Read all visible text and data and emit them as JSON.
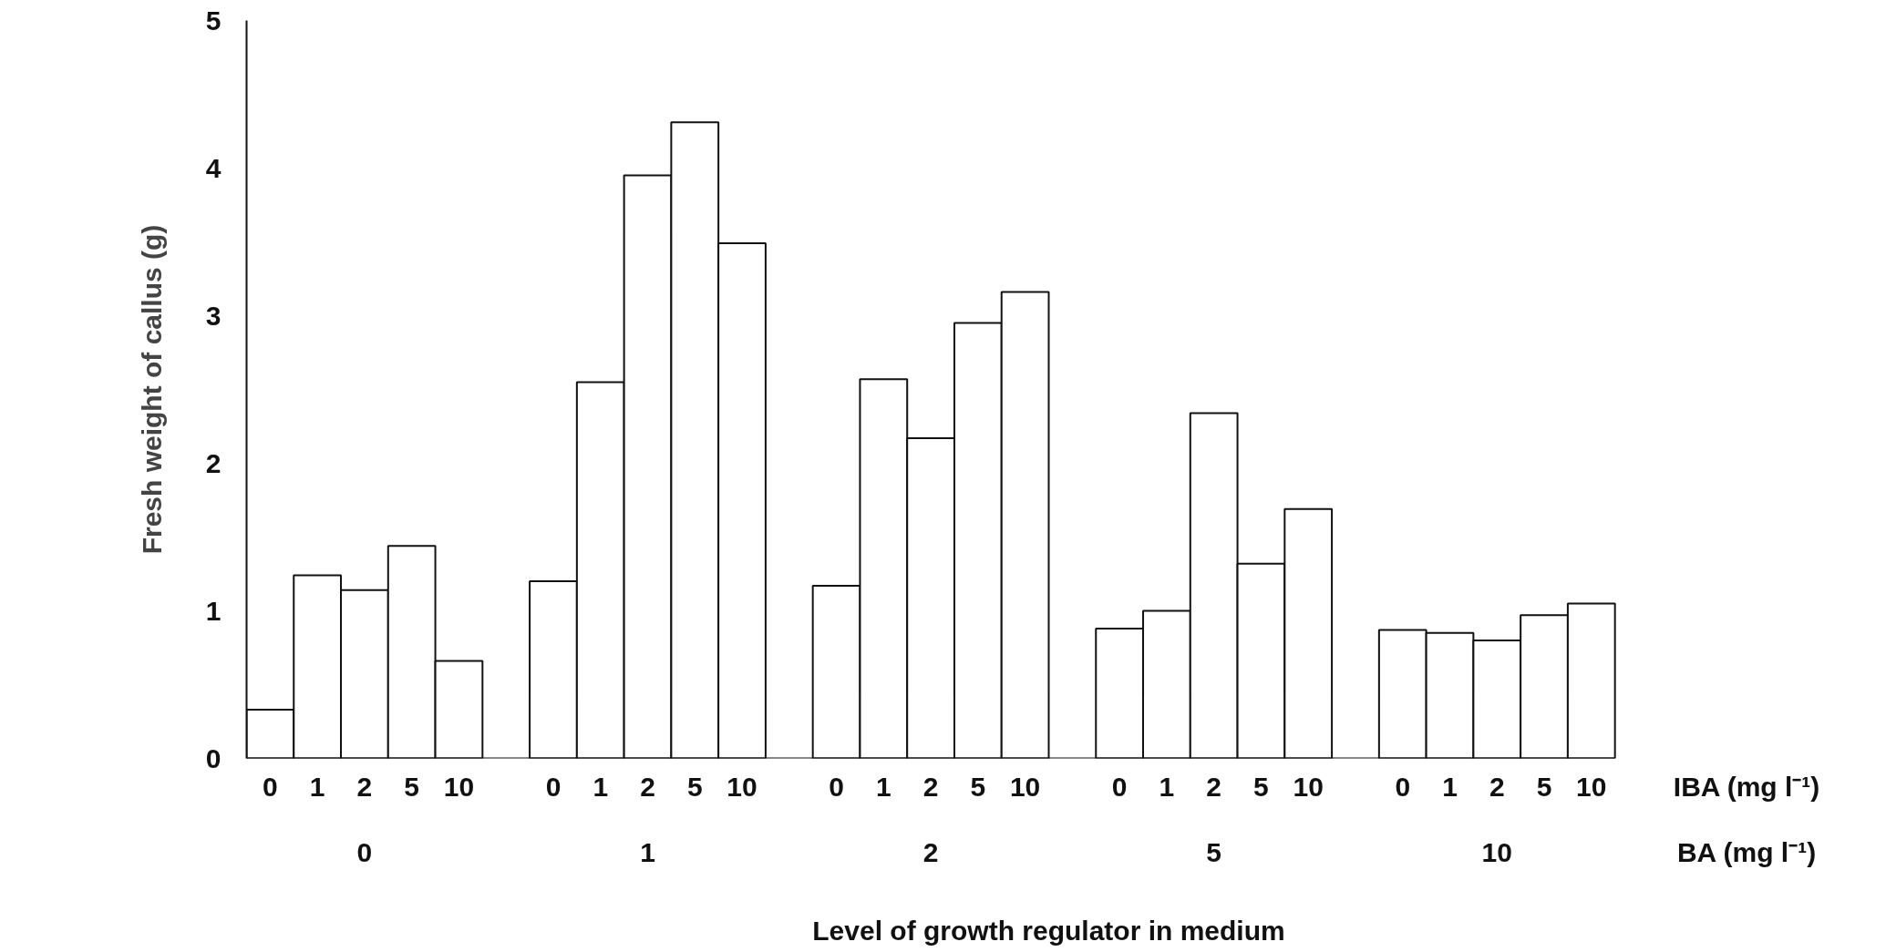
{
  "chart_data": {
    "type": "bar",
    "xlabel": "Level of growth regulator in medium",
    "ylabel": "Fresh weight of callus (g)",
    "categories": [
      "0",
      "1",
      "2",
      "5",
      "10",
      null,
      "0",
      "1",
      "2",
      "5",
      "10",
      null,
      "0",
      "1",
      "2",
      "5",
      "10",
      null,
      "0",
      "1",
      "2",
      "5",
      "10",
      null,
      "0",
      "1",
      "2",
      "5",
      "10"
    ],
    "values": [
      0.33,
      1.24,
      1.14,
      1.44,
      0.66,
      null,
      1.2,
      2.55,
      3.95,
      4.31,
      3.49,
      null,
      1.17,
      2.57,
      2.17,
      2.95,
      3.16,
      null,
      0.88,
      1.0,
      2.34,
      1.32,
      1.69,
      null,
      0.87,
      0.85,
      0.8,
      0.97,
      1.05
    ],
    "color": "#ffffff",
    "annotations": [
      "IBA (mg l⁻¹)",
      "BA (mg l⁻¹)",
      "0",
      "1",
      "2",
      "5",
      "10"
    ],
    "ylim": [
      0,
      5
    ],
    "yticks": [
      0,
      1,
      2,
      3,
      4,
      5
    ],
    "grid": false
  }
}
